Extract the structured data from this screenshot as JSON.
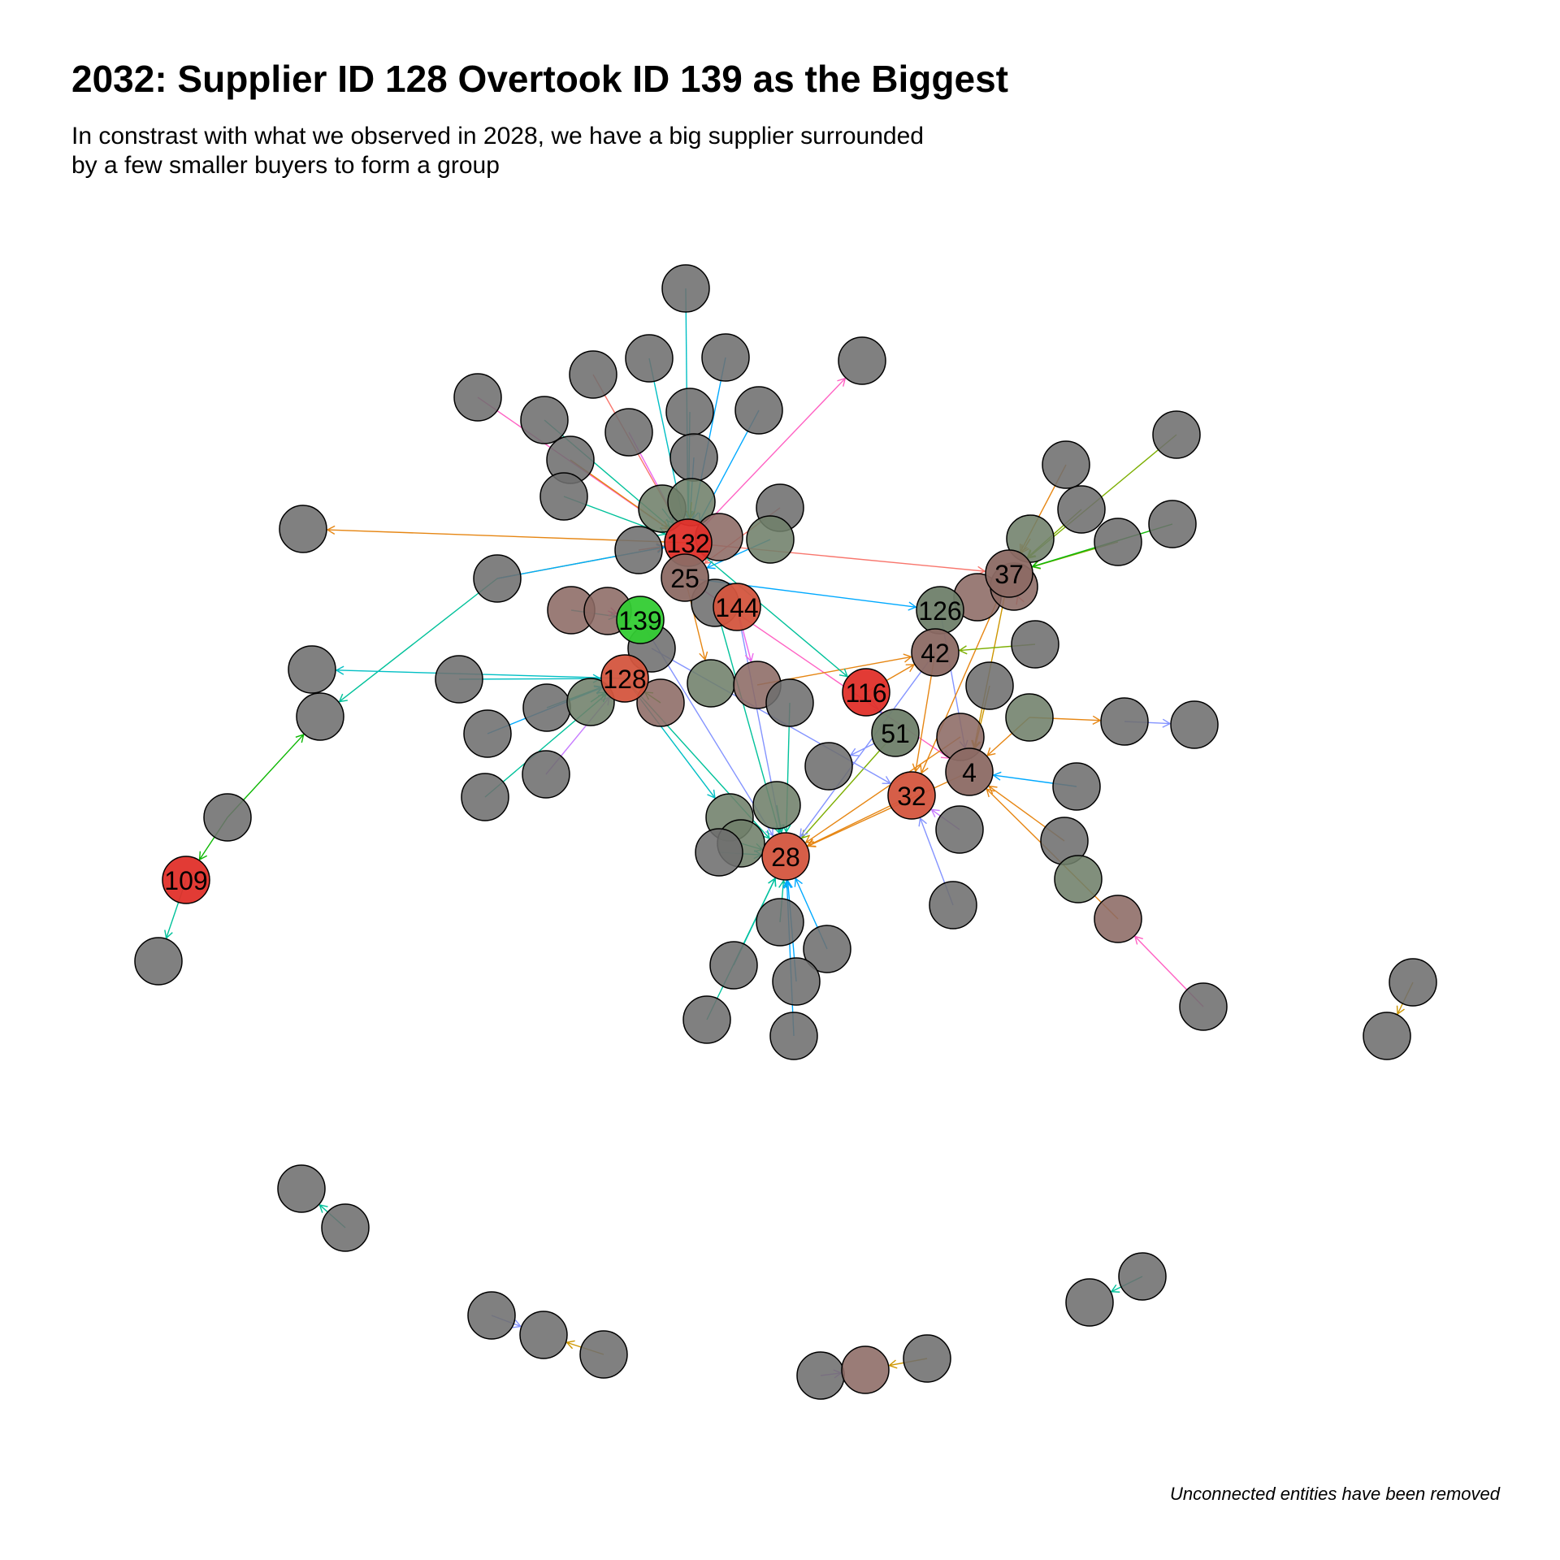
{
  "title": "2032: Supplier ID 128 Overtook ID 139 as the Biggest",
  "subtitle_line1": "In constrast with what we observed in 2028, we have a big supplier surrounded",
  "subtitle_line2": "by a few smaller buyers to form a group",
  "caption": "Unconnected entities have been removed",
  "colors": {
    "node_default": "#6e6e6e",
    "node_green": "#33cc33",
    "node_red": "#e0302a",
    "node_orange_red": "#d4553e",
    "node_mauve": "#8c6a64",
    "node_sage": "#6f806a",
    "edge_palette": [
      "#f8766d",
      "#00bfc4",
      "#7cae00",
      "#c77cff",
      "#00a9ff",
      "#e68613",
      "#ff61c3",
      "#00c19a",
      "#0cb702",
      "#8494ff",
      "#cd9600",
      "#ed68ed"
    ]
  },
  "labels": {
    "n132": "132",
    "n25": "25",
    "n139": "139",
    "n144": "144",
    "n128": "128",
    "n126": "126",
    "n42": "42",
    "n37": "37",
    "n116": "116",
    "n51": "51",
    "n4": "4",
    "n32": "32",
    "n28": "28",
    "n109": "109"
  }
}
